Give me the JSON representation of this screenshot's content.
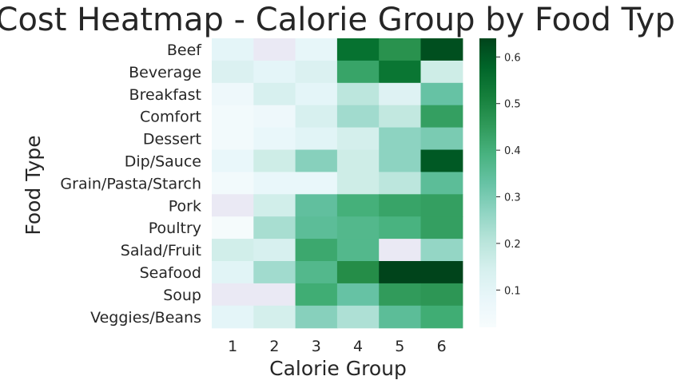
{
  "chart_data": {
    "type": "heatmap",
    "title": "Cost Heatmap - Calorie Group by Food Type",
    "xlabel": "Calorie Group",
    "ylabel": "Food Type",
    "x": [
      "1",
      "2",
      "3",
      "4",
      "5",
      "6"
    ],
    "y": [
      "Beef",
      "Beverage",
      "Breakfast",
      "Comfort",
      "Dessert",
      "Dip/Sauce",
      "Grain/Pasta/Starch",
      "Pork",
      "Poultry",
      "Salad/Fruit",
      "Seafood",
      "Soup",
      "Veggies/Beans"
    ],
    "values": [
      [
        0.1,
        null,
        0.09,
        0.55,
        0.47,
        0.62
      ],
      [
        0.13,
        0.1,
        0.13,
        0.43,
        0.54,
        0.17
      ],
      [
        0.06,
        0.14,
        0.1,
        0.2,
        0.12,
        0.33
      ],
      [
        0.04,
        0.06,
        0.14,
        0.24,
        0.19,
        0.44
      ],
      [
        0.04,
        0.08,
        0.11,
        0.15,
        0.27,
        0.3
      ],
      [
        0.08,
        0.17,
        0.28,
        0.17,
        0.27,
        0.6
      ],
      [
        0.04,
        0.08,
        0.08,
        0.17,
        0.2,
        0.35
      ],
      [
        null,
        0.16,
        0.34,
        0.4,
        0.43,
        0.44
      ],
      [
        0.03,
        0.23,
        0.35,
        0.37,
        0.39,
        0.44
      ],
      [
        0.16,
        0.14,
        0.42,
        0.37,
        null,
        0.26
      ],
      [
        0.11,
        0.24,
        0.37,
        0.48,
        0.64,
        0.64
      ],
      [
        null,
        null,
        0.41,
        0.33,
        0.45,
        0.46
      ],
      [
        0.1,
        0.15,
        0.28,
        0.22,
        0.35,
        0.41
      ]
    ],
    "colorbar": {
      "ticks": [
        0.1,
        0.2,
        0.3,
        0.4,
        0.5,
        0.6
      ],
      "min": 0.02,
      "max": 0.64,
      "colormap": "BuGn"
    },
    "missing_color": "#eae9f4",
    "grid": false
  }
}
